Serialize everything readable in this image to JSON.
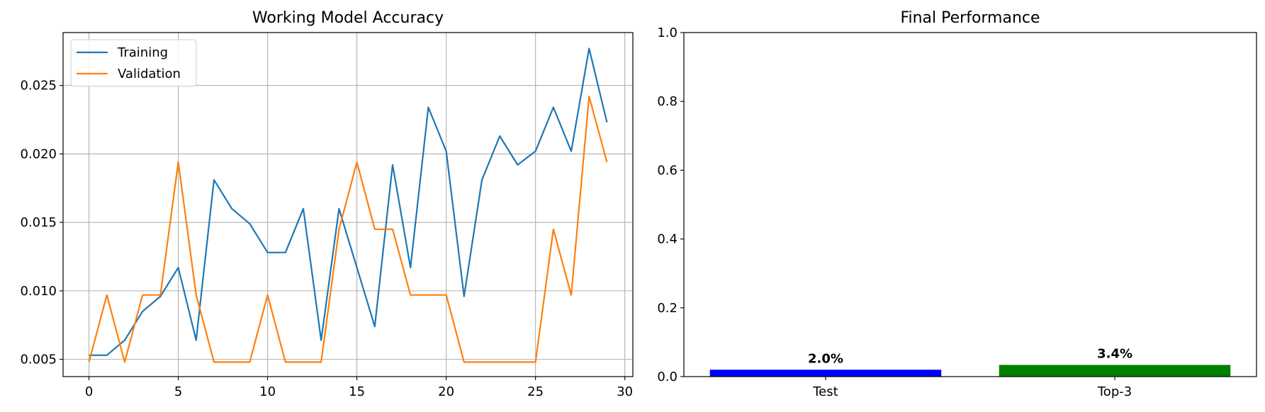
{
  "chart_data": [
    {
      "type": "line",
      "title": "Working Model Accuracy",
      "xlabel": "",
      "ylabel": "",
      "x": [
        0,
        1,
        2,
        3,
        4,
        5,
        6,
        7,
        8,
        9,
        10,
        11,
        12,
        13,
        14,
        15,
        16,
        17,
        18,
        19,
        20,
        21,
        22,
        23,
        24,
        25,
        26,
        27,
        28,
        29
      ],
      "series": [
        {
          "name": "Training",
          "color": "#1f77b4",
          "values": [
            0.0053,
            0.0053,
            0.0064,
            0.0085,
            0.0096,
            0.0117,
            0.0064,
            0.0181,
            0.016,
            0.0149,
            0.0128,
            0.0128,
            0.016,
            0.0064,
            0.016,
            0.0117,
            0.0074,
            0.0192,
            0.0117,
            0.0234,
            0.0202,
            0.0096,
            0.0181,
            0.0213,
            0.0192,
            0.0202,
            0.0234,
            0.0202,
            0.0277,
            0.0223
          ]
        },
        {
          "name": "Validation",
          "color": "#ff7f0e",
          "values": [
            0.0048,
            0.0097,
            0.0048,
            0.0097,
            0.0097,
            0.0194,
            0.0097,
            0.0048,
            0.0048,
            0.0048,
            0.0097,
            0.0048,
            0.0048,
            0.0048,
            0.0145,
            0.0194,
            0.0145,
            0.0145,
            0.0097,
            0.0097,
            0.0097,
            0.0048,
            0.0048,
            0.0048,
            0.0048,
            0.0048,
            0.0145,
            0.0097,
            0.0242,
            0.0194
          ]
        }
      ],
      "xlim": [
        -1.45,
        30.45
      ],
      "ylim": [
        0.00374,
        0.02886
      ],
      "xticks": [
        0,
        5,
        10,
        15,
        20,
        25,
        30
      ],
      "xtick_labels": [
        "0",
        "5",
        "10",
        "15",
        "20",
        "25",
        "30"
      ],
      "yticks": [
        0.005,
        0.01,
        0.015,
        0.02,
        0.025
      ],
      "ytick_labels": [
        "0.005",
        "0.010",
        "0.015",
        "0.020",
        "0.025"
      ],
      "grid": true,
      "legend": "upper-left"
    },
    {
      "type": "bar",
      "title": "Final Performance",
      "xlabel": "",
      "ylabel": "",
      "categories": [
        "Test",
        "Top-3"
      ],
      "values": [
        0.02,
        0.034
      ],
      "value_labels": [
        "2.0%",
        "3.4%"
      ],
      "colors": [
        "#0000ff",
        "#008000"
      ],
      "ylim": [
        0,
        1.0
      ],
      "yticks": [
        0.0,
        0.2,
        0.4,
        0.6,
        0.8,
        1.0
      ],
      "ytick_labels": [
        "0.0",
        "0.2",
        "0.4",
        "0.6",
        "0.8",
        "1.0"
      ],
      "grid": false
    }
  ]
}
